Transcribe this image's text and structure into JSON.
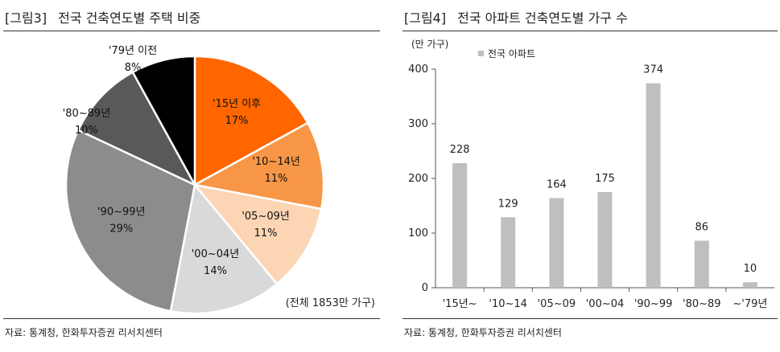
{
  "left": {
    "fig_label": "[그림3]",
    "title": "전국 건축연도별 주택 비중",
    "source": "자료: 통계청, 한화투자증권 리서치센터"
  },
  "right": {
    "fig_label": "[그림4]",
    "title": "전국 아파트 건축연도별 가구 수",
    "source": "자료: 통계청, 한화투자증권 리서치센터"
  },
  "chart_data": [
    {
      "type": "pie",
      "title": "전국 건축연도별 주택 비중",
      "slices": [
        {
          "label": "'15년 이후",
          "value": 17,
          "value_label": "17%",
          "color": "#ff6600"
        },
        {
          "label": "'10~14년",
          "value": 11,
          "value_label": "11%",
          "color": "#f79646"
        },
        {
          "label": "'05~09년",
          "value": 11,
          "value_label": "11%",
          "color": "#fcd5b5"
        },
        {
          "label": "'00~04년",
          "value": 14,
          "value_label": "14%",
          "color": "#d9d9d9"
        },
        {
          "label": "'90~99년",
          "value": 29,
          "value_label": "29%",
          "color": "#8c8c8c"
        },
        {
          "label": "'80~89년",
          "value": 10,
          "value_label": "10%",
          "color": "#595959"
        },
        {
          "label": "'79년 이전",
          "value": 8,
          "value_label": "8%",
          "color": "#000000"
        }
      ],
      "annotation": "(전체 1853만 가구)"
    },
    {
      "type": "bar",
      "title": "전국 아파트 건축연도별 가구 수",
      "ylabel": "(만 가구)",
      "ylim": [
        0,
        400
      ],
      "yticks": [
        0,
        100,
        200,
        300,
        400
      ],
      "categories": [
        "'15년~",
        "'10~14",
        "'05~09",
        "'00~04",
        "'90~99",
        "'80~89",
        "~'79년"
      ],
      "series": [
        {
          "name": "전국 아파트",
          "values": [
            228,
            129,
            164,
            175,
            374,
            86,
            10
          ],
          "color": "#bfbfbf"
        }
      ],
      "legend": "top-left"
    }
  ]
}
